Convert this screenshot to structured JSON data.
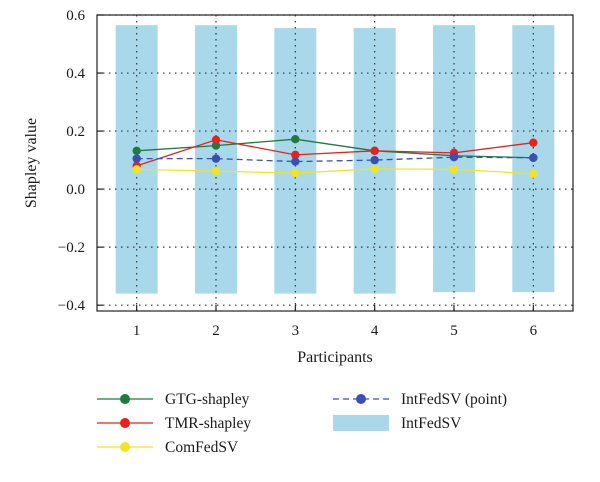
{
  "chart_data": {
    "type": "line",
    "xlabel": "Participants",
    "ylabel": "Shapley value",
    "x": [
      1,
      2,
      3,
      4,
      5,
      6
    ],
    "xlim": [
      0.5,
      6.5
    ],
    "ylim": [
      -0.42,
      0.6
    ],
    "yticks": [
      0.6,
      0.4,
      0.2,
      0.0,
      -0.2,
      -0.4
    ],
    "ytick_labels": [
      "0.6",
      "0.4",
      "0.2",
      "0.0",
      "−0.2",
      "−0.4"
    ],
    "xtick_labels": [
      "1",
      "2",
      "3",
      "4",
      "5",
      "6"
    ],
    "grid": "dotted",
    "legend_position": "bottom",
    "series": [
      {
        "name": "GTG-shapley",
        "kind": "line",
        "color": "#1f7a3e",
        "values": [
          0.132,
          0.15,
          0.172,
          0.132,
          0.115,
          0.108
        ]
      },
      {
        "name": "TMR-shapley",
        "kind": "line",
        "color": "#e8211b",
        "values": [
          0.08,
          0.17,
          0.118,
          0.132,
          0.125,
          0.16
        ]
      },
      {
        "name": "ComFedSV",
        "kind": "line",
        "color": "#f2e424",
        "values": [
          0.068,
          0.062,
          0.055,
          0.07,
          0.068,
          0.053
        ]
      },
      {
        "name": "IntFedSV (point)",
        "kind": "dashed",
        "color": "#3a4fb5",
        "values": [
          0.105,
          0.105,
          0.095,
          0.1,
          0.11,
          0.108
        ]
      },
      {
        "name": "IntFedSV",
        "kind": "interval",
        "color": "#a8d8ea",
        "lower": [
          -0.36,
          -0.36,
          -0.36,
          -0.36,
          -0.355,
          -0.355
        ],
        "upper": [
          0.565,
          0.565,
          0.555,
          0.555,
          0.565,
          0.565
        ]
      }
    ]
  }
}
